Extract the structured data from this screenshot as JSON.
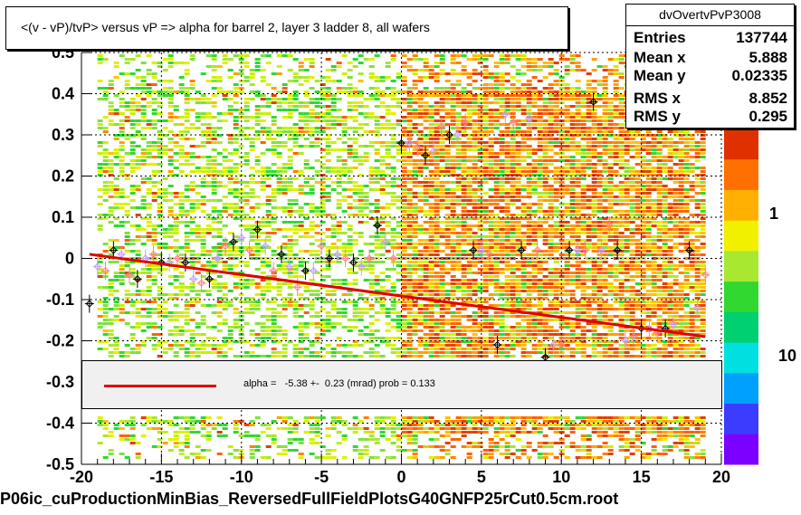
{
  "title": "<(v - vP)/tvP> versus   vP => alpha for barrel 2, layer 3 ladder 8, all wafers",
  "stats": {
    "name": "dvOvertvPvP3008",
    "rows": [
      {
        "label": "Entries",
        "value": "137744"
      },
      {
        "label": "Mean x",
        "value": "5.888"
      },
      {
        "label": "Mean y",
        "value": "0.02335"
      },
      {
        "label": "RMS x",
        "value": "8.852"
      },
      {
        "label": "RMS y",
        "value": "0.295"
      }
    ]
  },
  "fit": {
    "text": "alpha =   -5.38 +-  0.23 (mrad) prob = 0.133",
    "color": "#e00000"
  },
  "filename": "P06ic_cuProductionMinBias_ReversedFullFieldPlotsG40GNFP25rCut0.5cm.root",
  "z_axis": {
    "labels": [
      "1",
      "10"
    ],
    "colors": [
      "#7b00ff",
      "#3c3cff",
      "#00a0ff",
      "#00e0e0",
      "#00d070",
      "#30d830",
      "#a8e830",
      "#f0f000",
      "#ffb000",
      "#ff7000",
      "#e03000"
    ]
  },
  "chart_data": {
    "type": "heatmap",
    "title": "<(v - vP)/tvP> versus   vP => alpha for barrel 2, layer 3 ladder 8, all wafers",
    "xlabel": "",
    "ylabel": "",
    "xlim": [
      -20,
      20
    ],
    "ylim": [
      -0.5,
      0.5
    ],
    "x_ticks": [
      -20,
      -15,
      -10,
      -5,
      0,
      5,
      10,
      15,
      20
    ],
    "x_tick_labels": [
      "-20",
      "-15",
      "-10",
      "-5",
      "0",
      "5",
      "10",
      "15",
      "20"
    ],
    "y_ticks": [
      -0.5,
      -0.4,
      -0.3,
      -0.2,
      -0.1,
      0,
      0.1,
      0.2,
      0.3,
      0.4,
      0.5
    ],
    "y_tick_labels": [
      "-0.5",
      "-0.4",
      "-0.3",
      "-0.2",
      "-0.1",
      "0",
      "0.1",
      "0.2",
      "0.3",
      "0.4",
      "0.5"
    ],
    "grid": true,
    "profile_points": {
      "x": [
        -19.5,
        -19,
        -18.5,
        -18,
        -17.5,
        -17,
        -16.5,
        -16,
        -15.5,
        -15,
        -14.5,
        -14,
        -13.5,
        -13,
        -12.5,
        -12,
        -11.5,
        -11,
        -10.5,
        -10,
        -9.5,
        -9,
        -8.5,
        -8,
        -7.5,
        -7,
        -6.5,
        -6,
        -5.5,
        -5,
        -4.5,
        -4,
        -3.5,
        -3,
        -2.5,
        -2,
        -1.5,
        -1,
        -0.5,
        0,
        0.5,
        1,
        1.5,
        2,
        2.5,
        3,
        3.5,
        4,
        4.5,
        5,
        5.5,
        6,
        6.5,
        7,
        7.5,
        8,
        8.5,
        9,
        9.5,
        10,
        10.5,
        11,
        11.5,
        12,
        12.5,
        13,
        13.5,
        14,
        14.5,
        15,
        15.5,
        16,
        16.5,
        17,
        17.5,
        18,
        18.5,
        19
      ],
      "y": [
        -0.11,
        -0.02,
        -0.03,
        0.02,
        0.01,
        -0.04,
        -0.05,
        0.0,
        0.01,
        -0.01,
        -0.01,
        0.0,
        -0.01,
        -0.05,
        -0.06,
        -0.05,
        0.0,
        0.03,
        0.04,
        0.05,
        0.02,
        0.07,
        0.03,
        -0.03,
        0.01,
        -0.02,
        -0.07,
        -0.03,
        -0.03,
        0.03,
        0.0,
        0.01,
        0.0,
        -0.01,
        -0.02,
        0.0,
        0.08,
        0.04,
        0.0,
        0.28,
        0.28,
        0.27,
        0.25,
        0.26,
        0.32,
        0.3,
        0.3,
        0.33,
        0.02,
        0.02,
        0.01,
        -0.21,
        0.35,
        0.33,
        0.02,
        0.34,
        0.02,
        -0.24,
        -0.21,
        -0.21,
        0.02,
        0.02,
        0.02,
        0.38,
        0.02,
        0.08,
        0.02,
        -0.2,
        -0.19,
        -0.17,
        -0.17,
        -0.18,
        -0.17,
        -0.16,
        0.36,
        0.02,
        -0.12,
        -0.04
      ],
      "colors": [
        "#000000",
        "#c0a0ff",
        "#ff8080"
      ]
    },
    "fit_line": {
      "x": [
        -19.5,
        19
      ],
      "y": [
        0.01,
        -0.19
      ]
    },
    "fit_label": "alpha =   -5.38 +-  0.23 (mrad) prob = 0.133"
  }
}
